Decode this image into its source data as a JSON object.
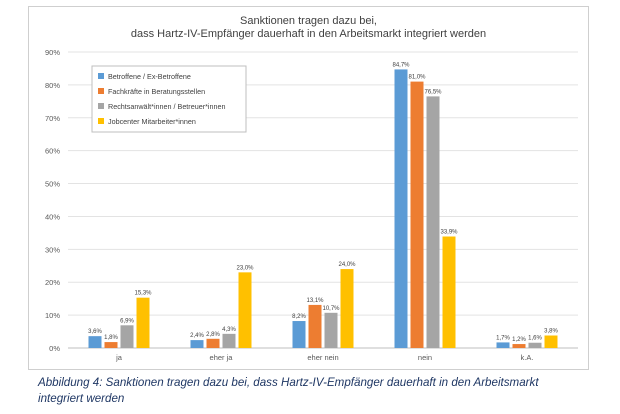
{
  "chart_data": {
    "type": "bar",
    "title_line1": "Sanktionen tragen dazu bei,",
    "title_line2": "dass Hartz-IV-Empfänger dauerhaft in den Arbeitsmarkt integriert werden",
    "categories": [
      "ja",
      "eher ja",
      "eher nein",
      "nein",
      "k.A."
    ],
    "ylim": [
      0,
      90
    ],
    "yticks": [
      "0%",
      "10%",
      "20%",
      "30%",
      "40%",
      "50%",
      "60%",
      "70%",
      "80%",
      "90%"
    ],
    "grid": true,
    "legend_position": "top-left",
    "series": [
      {
        "name": "Betroffene / Ex-Betroffene",
        "color": "#5b9bd5",
        "values": [
          3.6,
          2.4,
          8.2,
          84.7,
          1.7
        ],
        "labels": [
          "3,6%",
          "2,4%",
          "8,2%",
          "84,7%",
          "1,7%"
        ]
      },
      {
        "name": "Fachkräfte in Beratungsstellen",
        "color": "#ed7d31",
        "values": [
          1.8,
          2.8,
          13.1,
          81.0,
          1.2
        ],
        "labels": [
          "1,8%",
          "2,8%",
          "13,1%",
          "81,0%",
          "1,2%"
        ]
      },
      {
        "name": "Rechtsanwält*innen / Betreuer*innen",
        "color": "#a5a5a5",
        "values": [
          6.9,
          4.3,
          10.7,
          76.5,
          1.6
        ],
        "labels": [
          "6,9%",
          "4,3%",
          "10,7%",
          "76,5%",
          "1,6%"
        ]
      },
      {
        "name": "Jobcenter Mitarbeiter*innen",
        "color": "#ffc000",
        "values": [
          15.3,
          23.0,
          24.0,
          33.9,
          3.8
        ],
        "labels": [
          "15,3%",
          "23,0%",
          "24,0%",
          "33,9%",
          "3,8%"
        ]
      }
    ]
  },
  "caption": {
    "line1": "Abbildung 4: Sanktionen tragen dazu bei, dass Hartz-IV-Empfänger dauerhaft in den Arbeitsmarkt",
    "line2": "integriert werden"
  }
}
